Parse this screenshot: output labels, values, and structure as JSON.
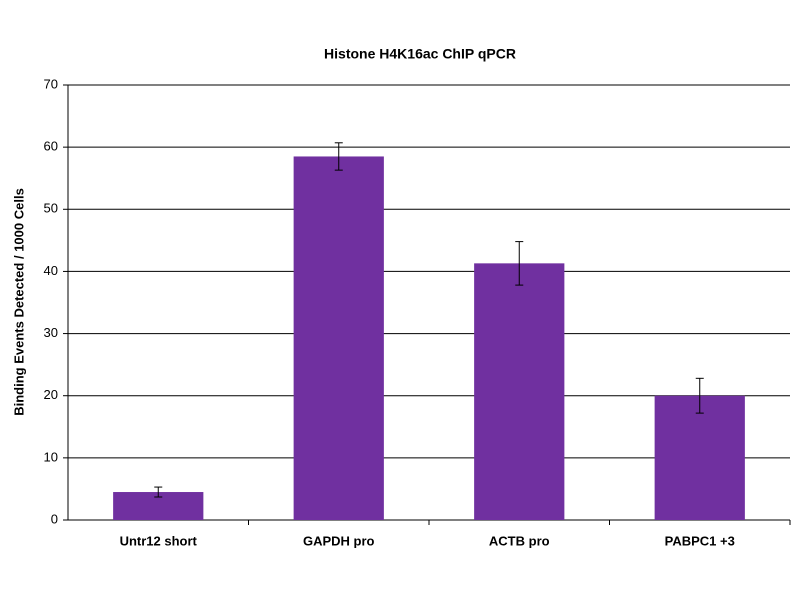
{
  "chart_data": {
    "type": "bar",
    "title": "Histone H4K16ac ChIP qPCR",
    "y_label": "Binding Events Detected / 1000 Cells",
    "categories": [
      "Untr12 short",
      "GAPDH pro",
      "ACTB pro",
      "PABPC1 +3"
    ],
    "values": [
      4.5,
      58.5,
      41.3,
      20.0
    ],
    "errors": [
      0.8,
      2.2,
      3.5,
      2.8
    ],
    "color": "#7030a0",
    "ylim": [
      0,
      70
    ],
    "yticks": [
      0,
      10,
      20,
      30,
      40,
      50,
      60,
      70
    ],
    "grid": true
  }
}
